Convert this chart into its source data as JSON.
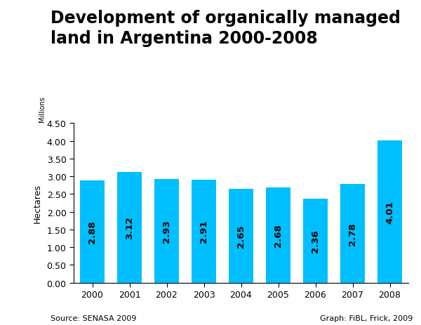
{
  "title": "Development of organically managed\nland in Argentina 2000-2008",
  "years": [
    2000,
    2001,
    2002,
    2003,
    2004,
    2005,
    2006,
    2007,
    2008
  ],
  "values": [
    2.88,
    3.12,
    2.93,
    2.91,
    2.65,
    2.68,
    2.36,
    2.78,
    4.01
  ],
  "bar_color": "#00BFFF",
  "ylabel": "Hectares",
  "ylabel2": "Millions",
  "ylim": [
    0,
    4.5
  ],
  "yticks": [
    0.0,
    0.5,
    1.0,
    1.5,
    2.0,
    2.5,
    3.0,
    3.5,
    4.0,
    4.5
  ],
  "ytick_labels": [
    "0.00",
    "0.50",
    "1.00",
    "1.50",
    "2.00",
    "2.50",
    "3.00",
    "3.50",
    "4.00",
    "4.50"
  ],
  "source_left": "Source: SENASA 2009",
  "source_right": "Graph: FiBL, Frick, 2009",
  "background_color": "#ffffff",
  "title_fontsize": 17,
  "label_fontsize": 9,
  "bar_label_fontsize": 9.5,
  "axis_fontsize": 9,
  "footer_fontsize": 8
}
